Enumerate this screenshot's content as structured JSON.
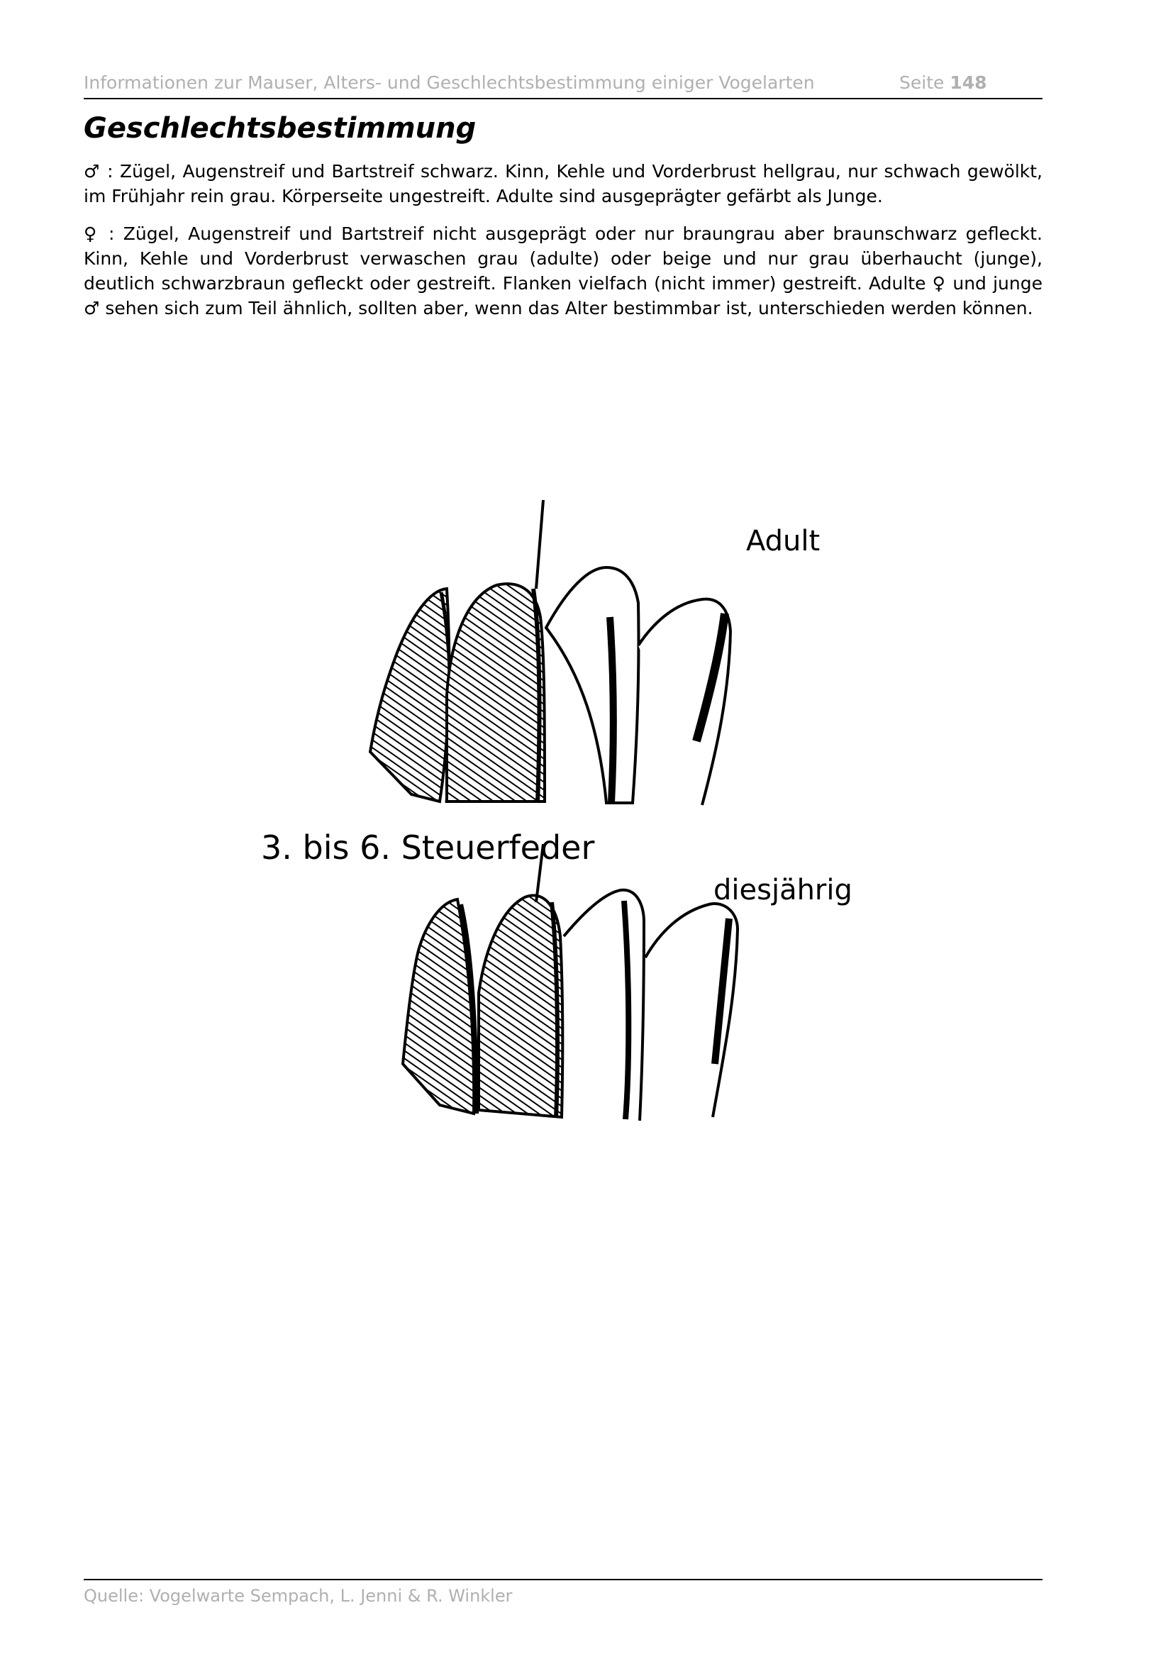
{
  "header": {
    "title": "Informationen zur Mauser, Alters- und Geschlechtsbestimmung einiger Vogelarten",
    "page_prefix": "Seite",
    "page_number": "148"
  },
  "section": {
    "title": "Geschlechtsbestimmung"
  },
  "paragraphs": {
    "male": "♂ : Zügel, Augenstreif und Bartstreif schwarz. Kinn, Kehle und Vorderbrust hellgrau, nur schwach gewölkt, im Frühjahr rein grau. Körperseite ungestreift. Adulte sind ausgeprägter gefärbt als Junge.",
    "female": "♀ : Zügel, Augenstreif und Bartstreif nicht ausgeprägt oder nur braungrau aber braunschwarz gefleckt. Kinn, Kehle und Vorderbrust verwaschen grau (adulte) oder beige und nur grau überhaucht (junge), deutlich schwarzbraun gefleckt oder gestreift. Flanken vielfach (nicht  immer) gestreift. Adulte ♀ und junge ♂ sehen sich zum Teil ähnlich, sollten aber, wenn das Alter bestimmbar ist, unterschieden werden können."
  },
  "figure": {
    "label_adult": "Adult",
    "label_feathers": "3. bis 6. Steuerfeder",
    "label_juvenile": "diesjährig"
  },
  "footer": {
    "source": "Quelle: Vogelwarte Sempach, L. Jenni & R. Winkler"
  }
}
